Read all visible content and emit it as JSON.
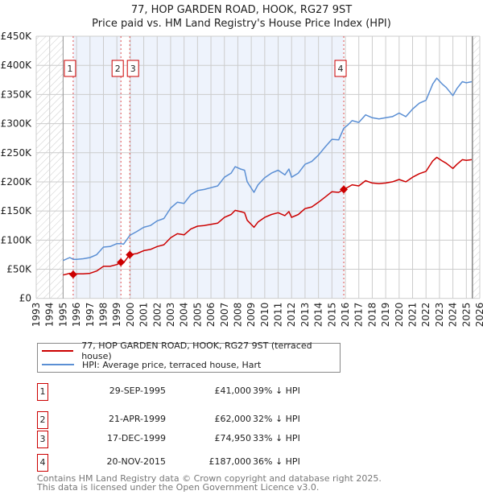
{
  "title_line1": "77, HOP GARDEN ROAD, HOOK, RG27 9ST",
  "title_line2": "Price paid vs. HM Land Registry's House Price Index (HPI)",
  "chart_data": {
    "type": "line",
    "title": "77, HOP GARDEN ROAD, HOOK, RG27 9ST — Price paid vs. HM Land Registry's House Price Index (HPI)",
    "xlim": [
      1993,
      2026
    ],
    "ylim": [
      0,
      450000
    ],
    "y_ticks": [
      "£0",
      "£50K",
      "£100K",
      "£150K",
      "£200K",
      "£250K",
      "£300K",
      "£350K",
      "£400K",
      "£450K"
    ],
    "x_ticks": [
      "1993",
      "1994",
      "1995",
      "1996",
      "1997",
      "1998",
      "1999",
      "2000",
      "2001",
      "2002",
      "2003",
      "2004",
      "2005",
      "2006",
      "2007",
      "2008",
      "2009",
      "2010",
      "2011",
      "2012",
      "2013",
      "2014",
      "2015",
      "2016",
      "2017",
      "2018",
      "2019",
      "2020",
      "2021",
      "2022",
      "2023",
      "2024",
      "2025",
      "2026"
    ],
    "grid": true,
    "colors": {
      "property": "#cc0000",
      "hpi": "#5b8fd4",
      "shade": "#eef3fc"
    },
    "series": [
      {
        "name": "77, HOP GARDEN ROAD, HOOK, RG27 9ST (terraced house)",
        "key": "property",
        "x": [
          1995.0,
          1995.5,
          1995.75,
          1996,
          1996.5,
          1997,
          1997.5,
          1998,
          1998.5,
          1999,
          1999.3,
          1999.5,
          1999.96,
          2000.5,
          2001,
          2001.5,
          2002,
          2002.5,
          2003,
          2003.5,
          2004,
          2004.5,
          2005,
          2005.5,
          2006,
          2006.5,
          2007,
          2007.5,
          2007.8,
          2008.2,
          2008.5,
          2008.7,
          2009.2,
          2009.5,
          2010,
          2010.5,
          2011,
          2011.5,
          2011.8,
          2012,
          2012.5,
          2013,
          2013.5,
          2014,
          2014.5,
          2015,
          2015.5,
          2015.88,
          2016.2,
          2016.5,
          2017,
          2017.5,
          2018,
          2018.5,
          2019,
          2019.5,
          2020,
          2020.5,
          2021,
          2021.5,
          2022,
          2022.5,
          2022.8,
          2023.2,
          2023.5,
          2024,
          2024.3,
          2024.7,
          2025,
          2025.4
        ],
        "y": [
          40,
          43,
          41,
          42,
          42,
          43,
          47,
          55,
          55,
          58,
          62,
          61,
          75,
          77,
          82,
          84,
          89,
          92,
          104,
          111,
          109,
          119,
          124,
          125,
          127,
          129,
          139,
          144,
          151,
          149,
          147,
          134,
          122,
          131,
          139,
          144,
          147,
          142,
          149,
          139,
          144,
          154,
          157,
          165,
          174,
          183,
          182,
          187,
          191,
          195,
          193,
          202,
          198,
          197,
          198,
          200,
          204,
          200,
          208,
          214,
          218,
          236,
          242,
          236,
          232,
          223,
          230,
          238,
          237,
          238
        ]
      },
      {
        "name": "HPI: Average price, terraced house, Hart",
        "key": "hpi",
        "x": [
          1995.0,
          1995.5,
          1995.75,
          1996,
          1996.5,
          1997,
          1997.5,
          1998,
          1998.5,
          1999,
          1999.3,
          1999.5,
          1999.96,
          2000.5,
          2001,
          2001.5,
          2002,
          2002.5,
          2003,
          2003.5,
          2004,
          2004.5,
          2005,
          2005.5,
          2006,
          2006.5,
          2007,
          2007.5,
          2007.8,
          2008.2,
          2008.5,
          2008.7,
          2009.2,
          2009.5,
          2010,
          2010.5,
          2011,
          2011.5,
          2011.8,
          2012,
          2012.5,
          2013,
          2013.5,
          2014,
          2014.5,
          2015,
          2015.5,
          2015.88,
          2016.2,
          2016.5,
          2017,
          2017.5,
          2018,
          2018.5,
          2019,
          2019.5,
          2020,
          2020.5,
          2021,
          2021.5,
          2022,
          2022.5,
          2022.8,
          2023.2,
          2023.5,
          2024,
          2024.3,
          2024.7,
          2025,
          2025.4
        ],
        "y": [
          65,
          70,
          67,
          67,
          68,
          70,
          75,
          88,
          89,
          94,
          94,
          93,
          108,
          115,
          122,
          125,
          133,
          137,
          155,
          165,
          163,
          178,
          185,
          187,
          190,
          193,
          208,
          215,
          226,
          222,
          220,
          200,
          182,
          195,
          207,
          215,
          220,
          212,
          222,
          208,
          215,
          230,
          235,
          246,
          260,
          273,
          272,
          292,
          298,
          305,
          302,
          315,
          310,
          308,
          310,
          312,
          318,
          312,
          325,
          335,
          340,
          368,
          378,
          368,
          362,
          348,
          360,
          372,
          370,
          372
        ]
      }
    ],
    "y_unit": "thousands GBP",
    "data_end": 2025.45,
    "sales": [
      {
        "label": "1",
        "x": 1995.75,
        "y": 41,
        "date": "29-SEP-1995",
        "price": "£41,000",
        "hpi": "39% ↓ HPI"
      },
      {
        "label": "2",
        "x": 1999.3,
        "y": 62,
        "date": "21-APR-1999",
        "price": "£62,000",
        "hpi": "32% ↓ HPI"
      },
      {
        "label": "3",
        "x": 1999.96,
        "y": 74.95,
        "date": "17-DEC-1999",
        "price": "£74,950",
        "hpi": "33% ↓ HPI"
      },
      {
        "label": "4",
        "x": 2015.88,
        "y": 187,
        "date": "20-NOV-2015",
        "price": "£187,000",
        "hpi": "36% ↓ HPI"
      }
    ],
    "legend_placement": "below"
  },
  "legend": {
    "property": "77, HOP GARDEN ROAD, HOOK, RG27 9ST (terraced house)",
    "hpi": "HPI: Average price, terraced house, Hart"
  },
  "footer": {
    "line1": "Contains HM Land Registry data © Crown copyright and database right 2025.",
    "line2": "This data is licensed under the Open Government Licence v3.0."
  }
}
